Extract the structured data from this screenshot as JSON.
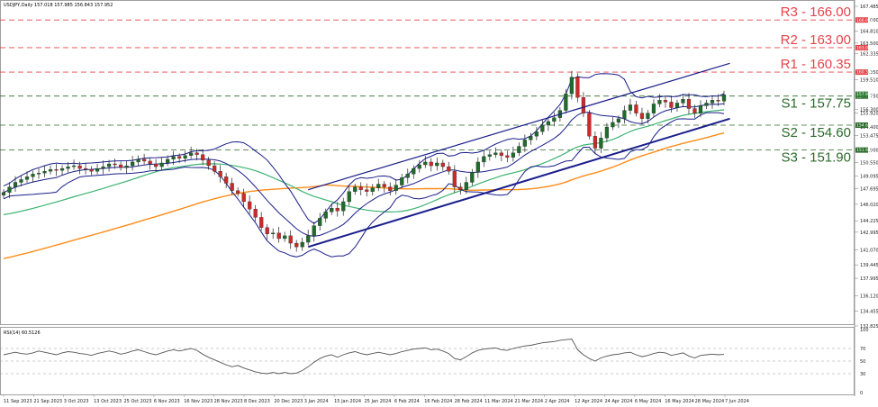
{
  "header": "USDJPY,Daily  157.018 157.985 156.843 157.952",
  "colors": {
    "resistance": "#e8434a",
    "support": "#2a6b2a",
    "bull_candle": "#1f6b2a",
    "bear_candle": "#cc2a2a",
    "bollinger": "#1a1e8a",
    "ma_green": "#3cb371",
    "ma_orange": "#ff8c1a",
    "channel": "#1a1e8a",
    "rsi": "#555555"
  },
  "chart_data": [
    {
      "type": "line",
      "title": "USDJPY,Daily  157.018 157.985 156.843 157.952",
      "ylim": [
        132.825,
        167.485
      ],
      "y_ticks": [
        "167.485",
        "166.000",
        "164.810",
        "163.500",
        "162.335",
        "160.350",
        "159.510",
        "157.750",
        "156.300",
        "155.920",
        "154.400",
        "153.475",
        "151.900",
        "150.550",
        "149.095",
        "147.695",
        "146.020",
        "144.225",
        "142.995",
        "141.070",
        "139.445",
        "137.995",
        "136.120",
        "134.455",
        "132.825"
      ],
      "x_labels": [
        "11 Sep 2023",
        "21 Sep 2023",
        "3 Oct 2023",
        "13 Oct 2023",
        "25 Oct 2023",
        "6 Nov 2023",
        "16 Nov 2023",
        "28 Nov 2023",
        "8 Dec 2023",
        "20 Dec 2023",
        "3 Jan 2024",
        "15 Jan 2024",
        "25 Jan 2024",
        "6 Feb 2024",
        "16 Feb 2024",
        "28 Feb 2024",
        "11 Mar 2024",
        "21 Mar 2024",
        "2 Apr 2024",
        "12 Apr 2024",
        "24 Apr 2024",
        "6 May 2024",
        "16 May 2024",
        "28 May 2024",
        "7 Jun 2024"
      ],
      "price_close_path": [
        147.3,
        147.9,
        148.4,
        148.7,
        149.0,
        149.3,
        149.4,
        149.6,
        149.8,
        149.7,
        149.9,
        150.1,
        150.2,
        149.9,
        149.8,
        149.6,
        149.9,
        150.1,
        150.4,
        150.3,
        150.0,
        150.2,
        150.6,
        150.9,
        150.7,
        150.4,
        150.1,
        150.5,
        150.9,
        151.2,
        151.0,
        151.3,
        151.6,
        151.4,
        150.8,
        150.2,
        149.6,
        149.0,
        148.3,
        147.5,
        147.2,
        146.3,
        145.5,
        144.6,
        143.5,
        142.8,
        142.9,
        142.3,
        142.6,
        141.8,
        141.4,
        141.9,
        142.6,
        143.7,
        144.5,
        145.2,
        145.6,
        145.3,
        146.3,
        147.4,
        147.9,
        147.6,
        147.4,
        147.8,
        148.2,
        147.9,
        147.5,
        148.1,
        148.9,
        149.3,
        149.9,
        150.3,
        150.6,
        150.2,
        150.5,
        150.1,
        149.6,
        147.9,
        147.6,
        148.4,
        149.5,
        150.6,
        151.2,
        151.4,
        151.6,
        151.3,
        151.1,
        151.6,
        152.3,
        153.0,
        153.4,
        153.9,
        154.6,
        155.0,
        155.4,
        156.2,
        158.0,
        159.8,
        157.6,
        155.9,
        153.4,
        152.1,
        153.2,
        154.4,
        154.9,
        155.3,
        156.2,
        156.8,
        155.9,
        155.3,
        155.9,
        156.9,
        157.3,
        157.1,
        156.5,
        157.0,
        157.4,
        156.4,
        155.9,
        156.7,
        157.0,
        157.3,
        157.2,
        157.9
      ],
      "support_resistance": [
        {
          "name": "R3",
          "value": 166.0,
          "label": "R3 - 166.00"
        },
        {
          "name": "R2",
          "value": 163.0,
          "label": "R2 - 163.00"
        },
        {
          "name": "R1",
          "value": 160.35,
          "label": "R1 - 160.35"
        },
        {
          "name": "S1",
          "value": 157.75,
          "label": "S1 - 157.75"
        },
        {
          "name": "S2",
          "value": 154.6,
          "label": "S2 - 154.60"
        },
        {
          "name": "S3",
          "value": 151.9,
          "label": "S3 - 151.90"
        }
      ],
      "price_tags": [
        {
          "value": 166.0,
          "text": "166.000",
          "color": "resistance"
        },
        {
          "value": 163.0,
          "text": "163.000",
          "color": "resistance"
        },
        {
          "value": 160.35,
          "text": "160.350",
          "color": "resistance"
        },
        {
          "value": 157.75,
          "text": "157.750",
          "color": "support"
        },
        {
          "value": 154.6,
          "text": "154.600",
          "color": "support"
        },
        {
          "value": 151.9,
          "text": "151.900",
          "color": "support"
        }
      ],
      "last_price": {
        "value": 157.952,
        "text": "157.952"
      }
    },
    {
      "type": "line",
      "title": "RSI(14) 60.5126",
      "ylim": [
        0,
        100
      ],
      "y_ticks": [
        "100",
        "70",
        "50",
        "30",
        "0"
      ],
      "levels": [
        70,
        50,
        30
      ],
      "series": [
        {
          "values": [
            60,
            62,
            64,
            62,
            61,
            63,
            66,
            64,
            62,
            60,
            63,
            65,
            64,
            62,
            61,
            59,
            62,
            64,
            66,
            64,
            61,
            63,
            66,
            68,
            65,
            62,
            60,
            63,
            66,
            68,
            66,
            68,
            70,
            67,
            61,
            56,
            52,
            48,
            44,
            41,
            43,
            39,
            36,
            33,
            31,
            30,
            32,
            30,
            32,
            30,
            31,
            35,
            41,
            48,
            54,
            58,
            60,
            56,
            60,
            63,
            65,
            62,
            60,
            62,
            64,
            62,
            60,
            62,
            65,
            67,
            69,
            70,
            71,
            68,
            69,
            66,
            62,
            54,
            52,
            57,
            63,
            67,
            69,
            70,
            71,
            68,
            67,
            70,
            72,
            74,
            75,
            77,
            79,
            80,
            81,
            83,
            84,
            85,
            68,
            60,
            54,
            50,
            55,
            58,
            60,
            61,
            63,
            64,
            60,
            57,
            59,
            62,
            64,
            63,
            59,
            61,
            63,
            58,
            55,
            59,
            60,
            61,
            60,
            60.5
          ]
        }
      ]
    }
  ]
}
